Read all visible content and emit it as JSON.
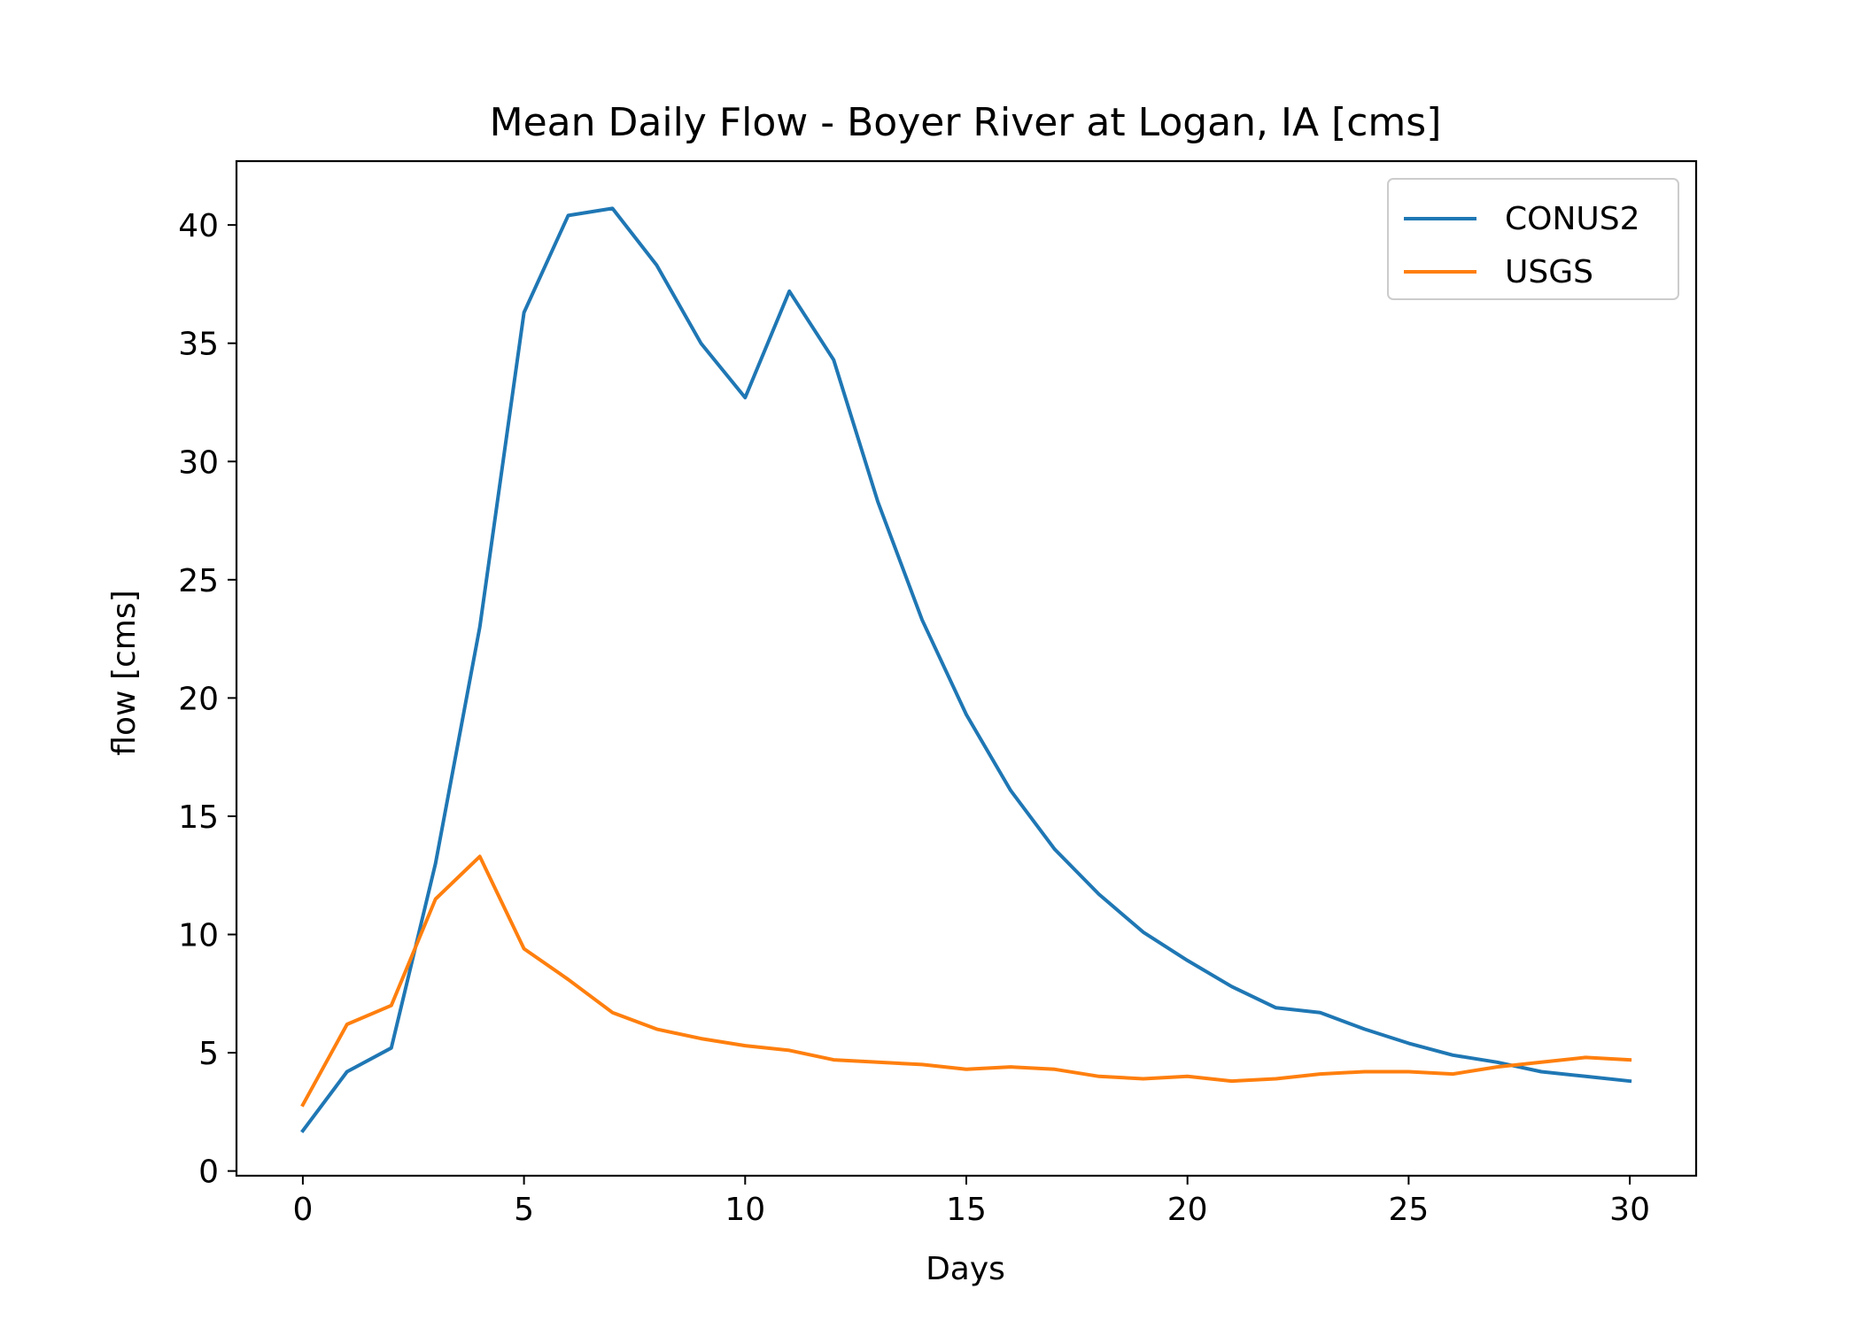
{
  "chart_data": {
    "type": "line",
    "title": "Mean Daily Flow - Boyer River at Logan, IA [cms]",
    "xlabel": "Days",
    "ylabel": "flow [cms]",
    "xlim": [
      -1.5,
      31.5
    ],
    "ylim": [
      -0.2,
      42.7
    ],
    "xticks": [
      0,
      5,
      10,
      15,
      20,
      25,
      30
    ],
    "yticks": [
      0,
      5,
      10,
      15,
      20,
      25,
      30,
      35,
      40
    ],
    "grid": false,
    "legend_position": "top-right",
    "x": [
      0,
      1,
      2,
      3,
      4,
      5,
      6,
      7,
      8,
      9,
      10,
      11,
      12,
      13,
      14,
      15,
      16,
      17,
      18,
      19,
      20,
      21,
      22,
      23,
      24,
      25,
      26,
      27,
      28,
      29,
      30
    ],
    "series": [
      {
        "name": "CONUS2",
        "color": "#1f77b4",
        "values": [
          1.7,
          4.2,
          5.2,
          13.0,
          23.0,
          36.3,
          40.4,
          40.7,
          38.3,
          35.0,
          32.7,
          37.2,
          34.3,
          28.3,
          23.3,
          19.3,
          16.1,
          13.6,
          11.7,
          10.1,
          8.9,
          7.8,
          6.9,
          6.7,
          6.0,
          5.4,
          4.9,
          4.6,
          4.2,
          4.0,
          3.8
        ]
      },
      {
        "name": "USGS",
        "color": "#ff7f0e",
        "values": [
          2.8,
          6.2,
          7.0,
          11.5,
          13.3,
          9.4,
          8.1,
          6.7,
          6.0,
          5.6,
          5.3,
          5.1,
          4.7,
          4.6,
          4.5,
          4.3,
          4.4,
          4.3,
          4.0,
          3.9,
          4.0,
          3.8,
          3.9,
          4.1,
          4.2,
          4.2,
          4.1,
          4.4,
          4.6,
          4.8,
          4.7
        ]
      }
    ]
  }
}
